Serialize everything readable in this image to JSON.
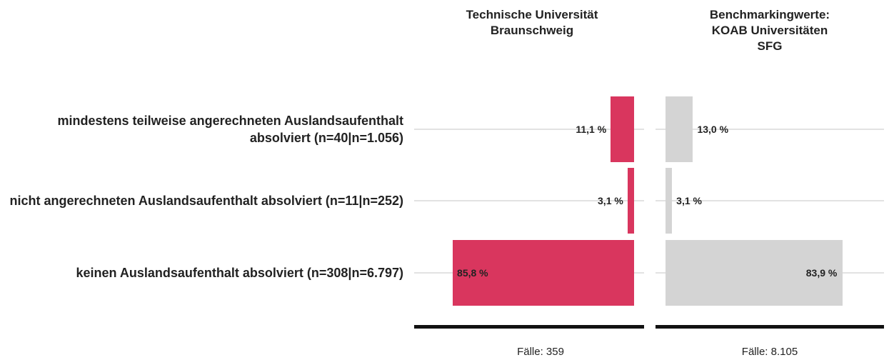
{
  "chart_data": {
    "type": "bar",
    "categories": [
      "mindestens teilweise angerechneten Auslandsaufenthalt absolviert (n=40|n=1.056)",
      "nicht angerechneten Auslandsaufenthalt absolviert (n=11|n=252)",
      "keinen Auslandsaufenthalt absolviert (n=308|n=6.797)"
    ],
    "series": [
      {
        "name": "Technische Universität Braunschweig",
        "color": "#d9365e",
        "values": [
          11.1,
          3.1,
          85.8
        ],
        "value_labels": [
          "11,1 %",
          "3,1 %",
          "85,8 %"
        ],
        "cases": "Fälle: 359"
      },
      {
        "name": "Benchmarkingwerte: KOAB Universitäten SFG",
        "color": "#d4d4d4",
        "values": [
          13.0,
          3.1,
          83.9
        ],
        "value_labels": [
          "13,0 %",
          "3,1 %",
          "83,9 %"
        ],
        "cases": "Fälle: 8.105"
      }
    ],
    "xlim": [
      0,
      100
    ]
  }
}
